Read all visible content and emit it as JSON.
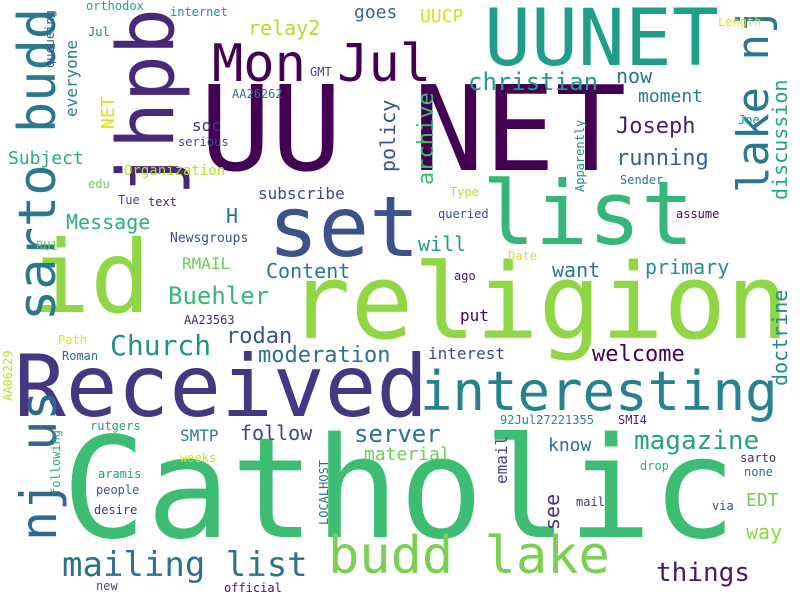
{
  "words": [
    {
      "text": "Catholic",
      "color": "#3dbc74"
    },
    {
      "text": "UU NET",
      "color": "#440154"
    },
    {
      "text": "religion",
      "color": "#8fd744"
    },
    {
      "text": "Received",
      "color": "#453781"
    },
    {
      "text": "UUNET",
      "color": "#1f9e89"
    },
    {
      "text": "list",
      "color": "#35b779"
    },
    {
      "text": "set",
      "color": "#3b528b"
    },
    {
      "text": "id",
      "color": "#8fd744"
    },
    {
      "text": "jhpb",
      "color": "#482878"
    },
    {
      "text": "budd lake",
      "color": "#7ad151"
    },
    {
      "text": "interesting",
      "color": "#26828e"
    },
    {
      "text": "sarto budd",
      "color": "#2a788e"
    },
    {
      "text": "nj us",
      "color": "#31688e"
    },
    {
      "text": "lake nj",
      "color": "#2a788e"
    },
    {
      "text": "Mon Jul",
      "color": "#440154"
    },
    {
      "text": "mailing list",
      "color": "#2c728e"
    },
    {
      "text": "Church",
      "color": "#21918c"
    },
    {
      "text": "magazine",
      "color": "#20a386"
    },
    {
      "text": "things",
      "color": "#481a6c"
    },
    {
      "text": "server",
      "color": "#2c728e"
    },
    {
      "text": "archive",
      "color": "#3dbc74"
    },
    {
      "text": "discussion",
      "color": "#22a785"
    },
    {
      "text": "doctrine",
      "color": "#238a8d"
    },
    {
      "text": "Buehler",
      "color": "#35b779"
    },
    {
      "text": "welcome",
      "color": "#440154"
    },
    {
      "text": "moderation",
      "color": "#2d708e"
    },
    {
      "text": "rodan",
      "color": "#39568c"
    },
    {
      "text": "christian",
      "color": "#1f9e89"
    },
    {
      "text": "running",
      "color": "#33638d"
    },
    {
      "text": "Joseph",
      "color": "#481f70"
    },
    {
      "text": "relay2",
      "color": "#b5de2b"
    },
    {
      "text": "Content",
      "color": "#2a788e"
    },
    {
      "text": "primary",
      "color": "#21918c"
    },
    {
      "text": "want",
      "color": "#2a788e"
    },
    {
      "text": "will",
      "color": "#1f9e89"
    },
    {
      "text": "policy",
      "color": "#3b528b"
    },
    {
      "text": "now",
      "color": "#2c728e"
    },
    {
      "text": "moment",
      "color": "#287c8e"
    },
    {
      "text": "follow",
      "color": "#3f4788"
    },
    {
      "text": "know",
      "color": "#2d708e"
    },
    {
      "text": "see",
      "color": "#472d7b"
    },
    {
      "text": "way",
      "color": "#8fd744"
    },
    {
      "text": "EDT",
      "color": "#75d054"
    },
    {
      "text": "email",
      "color": "#3e4989"
    },
    {
      "text": "material",
      "color": "#6ece58"
    },
    {
      "text": "goes",
      "color": "#31688e"
    },
    {
      "text": "UUCP",
      "color": "#d2e21b"
    },
    {
      "text": "Message",
      "color": "#2ab07f"
    },
    {
      "text": "Subject",
      "color": "#26ad81"
    },
    {
      "text": "RMAIL",
      "color": "#6ece58"
    },
    {
      "text": "SMTP",
      "color": "#27808e"
    },
    {
      "text": "H",
      "color": "#2c728e"
    },
    {
      "text": "interest",
      "color": "#3e4989"
    },
    {
      "text": "subscribe",
      "color": "#3e4a89"
    },
    {
      "text": "put",
      "color": "#450559"
    },
    {
      "text": "soc",
      "color": "#46307e"
    },
    {
      "text": "NET",
      "color": "#d8e219"
    },
    {
      "text": "everyone",
      "color": "#287d8e"
    },
    {
      "text": "Organization",
      "color": "#b5de2b"
    },
    {
      "text": "Newsgroups",
      "color": "#3b528b"
    },
    {
      "text": "Tue",
      "color": "#3f4788"
    },
    {
      "text": "text",
      "color": "#482475"
    },
    {
      "text": "queried",
      "color": "#3e4a89"
    },
    {
      "text": "Type",
      "color": "#c2df23"
    },
    {
      "text": "Apparently",
      "color": "#238a8d"
    },
    {
      "text": "Sender",
      "color": "#2a788e"
    },
    {
      "text": "assume",
      "color": "#46075a"
    },
    {
      "text": "Date",
      "color": "#d8e219"
    },
    {
      "text": "ago",
      "color": "#471365"
    },
    {
      "text": "edu",
      "color": "#6ece58"
    },
    {
      "text": "RU1",
      "color": "#6ece58"
    },
    {
      "text": "serious",
      "color": "#3e4a89"
    },
    {
      "text": "AA26262",
      "color": "#2c728e"
    },
    {
      "text": "AA23563",
      "color": "#482677"
    },
    {
      "text": "queueing",
      "color": "#39568c"
    },
    {
      "text": "GMT",
      "color": "#3f4788"
    },
    {
      "text": "orthodox",
      "color": "#20a386"
    },
    {
      "text": "internet",
      "color": "#228d8d"
    },
    {
      "text": "Jul",
      "color": "#2a788e"
    },
    {
      "text": "Length",
      "color": "#e5e419"
    },
    {
      "text": "Joe",
      "color": "#21908d"
    },
    {
      "text": "Path",
      "color": "#e5e419"
    },
    {
      "text": "Roman",
      "color": "#2c728e"
    },
    {
      "text": "AA06229",
      "color": "#c0df25"
    },
    {
      "text": "rutgers",
      "color": "#20a386"
    },
    {
      "text": "weeks",
      "color": "#c8e020"
    },
    {
      "text": "aramis",
      "color": "#1f9e89"
    },
    {
      "text": "people",
      "color": "#39568c"
    },
    {
      "text": "following",
      "color": "#2ab07f"
    },
    {
      "text": "desire",
      "color": "#46307e"
    },
    {
      "text": "new",
      "color": "#3e4989"
    },
    {
      "text": "official",
      "color": "#471164"
    },
    {
      "text": "LOCALHOST",
      "color": "#2c728e"
    },
    {
      "text": "92Jul27221355",
      "color": "#238a8d"
    },
    {
      "text": "SMI4",
      "color": "#481f70"
    },
    {
      "text": "drop",
      "color": "#2ab07f"
    },
    {
      "text": "mail",
      "color": "#453781"
    },
    {
      "text": "sarto",
      "color": "#482677"
    },
    {
      "text": "none",
      "color": "#2d708e"
    },
    {
      "text": "via",
      "color": "#3b528b"
    }
  ]
}
